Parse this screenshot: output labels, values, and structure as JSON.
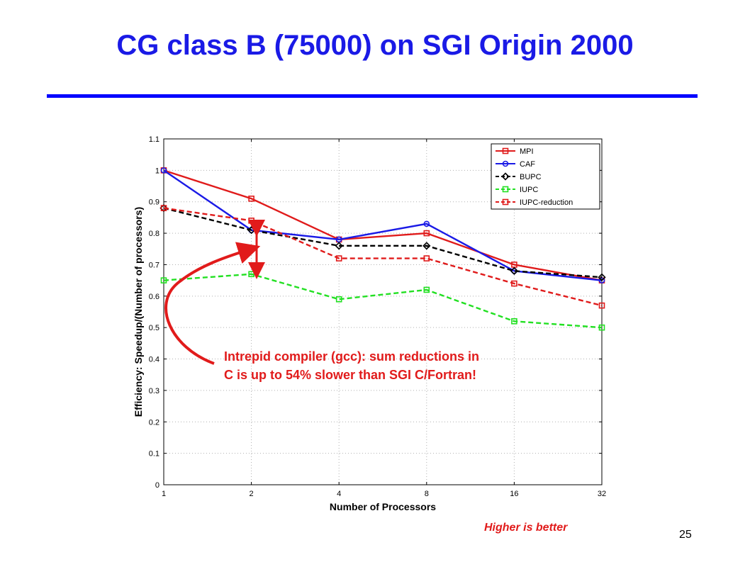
{
  "slide": {
    "title": "CG class B (75000) on SGI Origin 2000",
    "annotation_line1": "Intrepid compiler (gcc): sum reductions in",
    "annotation_line2": "C is up to 54% slower than SGI C/Fortran!",
    "footer_note": "Higher is better",
    "page_number": "25",
    "colors": {
      "title": "#1a1ae6",
      "rule": "#0000ff",
      "annotation": "#e11b1b"
    }
  },
  "chart_data": {
    "type": "line",
    "title": "",
    "xlabel": "Number of Processors",
    "ylabel": "Efficiency: Speedup/(Number of processors)",
    "categories": [
      "1",
      "2",
      "4",
      "8",
      "16",
      "32"
    ],
    "ylim": [
      0,
      1.1
    ],
    "yticks": [
      "0",
      "0.1",
      "0.2",
      "0.3",
      "0.4",
      "0.5",
      "0.6",
      "0.7",
      "0.8",
      "0.9",
      "1",
      "1.1"
    ],
    "grid": true,
    "legend_position": "top-right",
    "series": [
      {
        "name": "MPI",
        "color": "#e01b1b",
        "dashed": false,
        "marker": "square",
        "values": [
          1.0,
          0.91,
          0.78,
          0.8,
          0.7,
          0.65
        ]
      },
      {
        "name": "CAF",
        "color": "#1a1ae6",
        "dashed": false,
        "marker": "circle",
        "values": [
          1.0,
          0.81,
          0.78,
          0.83,
          0.68,
          0.65
        ]
      },
      {
        "name": "BUPC",
        "color": "#000000",
        "dashed": true,
        "marker": "diamond",
        "values": [
          0.88,
          0.81,
          0.76,
          0.76,
          0.68,
          0.66
        ]
      },
      {
        "name": "IUPC",
        "color": "#22e022",
        "dashed": true,
        "marker": "square",
        "values": [
          0.65,
          0.67,
          0.59,
          0.62,
          0.52,
          0.5
        ]
      },
      {
        "name": "IUPC-reduction",
        "color": "#e01b1b",
        "dashed": true,
        "marker": "square",
        "values": [
          0.88,
          0.84,
          0.72,
          0.72,
          0.64,
          0.57
        ]
      }
    ]
  }
}
